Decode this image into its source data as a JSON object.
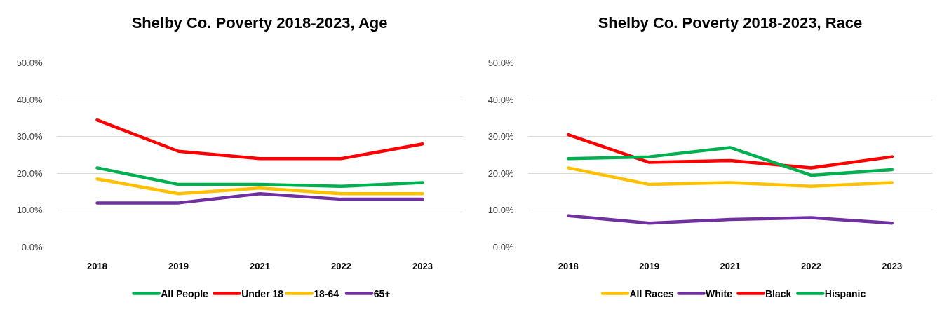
{
  "chart_data": [
    {
      "type": "line",
      "title": "Shelby Co. Poverty 2018-2023, Age",
      "categories": [
        "2018",
        "2019",
        "2021",
        "2022",
        "2023"
      ],
      "series": [
        {
          "name": "All People",
          "color": "#00b050",
          "values": [
            21.5,
            17,
            17,
            16.5,
            17.5
          ]
        },
        {
          "name": "Under 18",
          "color": "#ff0000",
          "values": [
            34.5,
            26,
            24,
            24,
            28
          ]
        },
        {
          "name": "18-64",
          "color": "#ffc000",
          "values": [
            18.5,
            14.5,
            16,
            14.5,
            14.5
          ]
        },
        {
          "name": "65+",
          "color": "#7030a0",
          "values": [
            12,
            12,
            14.5,
            13,
            13
          ]
        }
      ],
      "ylim": [
        0,
        50
      ],
      "yticks": [
        {
          "value": 0,
          "label": "0.0%"
        },
        {
          "value": 10,
          "label": "10.0%"
        },
        {
          "value": 20,
          "label": "20.0%"
        },
        {
          "value": 30,
          "label": "30.0%"
        },
        {
          "value": 40,
          "label": "40.0%"
        },
        {
          "value": 50,
          "label": "50.0%"
        }
      ],
      "grid": "y",
      "legend": "bottom"
    },
    {
      "type": "line",
      "title": "Shelby Co. Poverty 2018-2023, Race",
      "categories": [
        "2018",
        "2019",
        "2021",
        "2022",
        "2023"
      ],
      "series": [
        {
          "name": "All Races",
          "color": "#ffc000",
          "values": [
            21.5,
            17,
            17.5,
            16.5,
            17.5
          ]
        },
        {
          "name": "White",
          "color": "#7030a0",
          "values": [
            8.5,
            6.5,
            7.5,
            8,
            6.5
          ]
        },
        {
          "name": "Black",
          "color": "#ff0000",
          "values": [
            30.5,
            23,
            23.5,
            21.5,
            24.5
          ]
        },
        {
          "name": "Hispanic",
          "color": "#00b050",
          "values": [
            24,
            24.5,
            27,
            19.5,
            21
          ]
        }
      ],
      "ylim": [
        0,
        50
      ],
      "yticks": [
        {
          "value": 0,
          "label": "0.0%"
        },
        {
          "value": 10,
          "label": "10.0%"
        },
        {
          "value": 20,
          "label": "20.0%"
        },
        {
          "value": 30,
          "label": "30.0%"
        },
        {
          "value": 40,
          "label": "40.0%"
        },
        {
          "value": 50,
          "label": "50.0%"
        }
      ],
      "grid": "y",
      "legend": "bottom"
    }
  ]
}
